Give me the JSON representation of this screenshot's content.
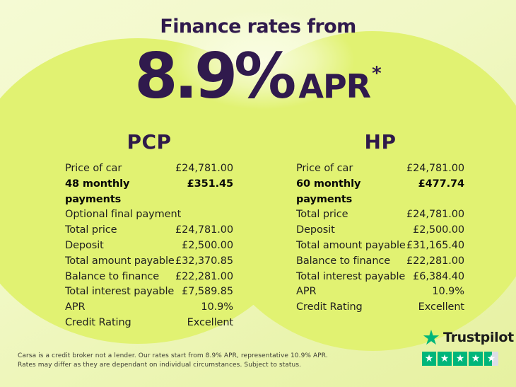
{
  "title": "Finance rates from",
  "headline": {
    "rate": "8.9%",
    "unit": "APR",
    "footnote_marker": "*"
  },
  "columns": [
    {
      "name": "PCP",
      "rows": [
        {
          "label": "Price of car",
          "value": "£24,781.00",
          "bold": false
        },
        {
          "label": "48 monthly payments",
          "value": "£351.45",
          "bold": true
        },
        {
          "label": "Optional final payment",
          "value": "",
          "bold": false
        },
        {
          "label": "Total price",
          "value": "£24,781.00",
          "bold": false
        },
        {
          "label": "Deposit",
          "value": "£2,500.00",
          "bold": false
        },
        {
          "label": "Total amount payable",
          "value": "£32,370.85",
          "bold": false
        },
        {
          "label": "Balance to finance",
          "value": "£22,281.00",
          "bold": false
        },
        {
          "label": "Total interest payable",
          "value": "£7,589.85",
          "bold": false
        },
        {
          "label": "APR",
          "value": "10.9%",
          "bold": false
        },
        {
          "label": "Credit Rating",
          "value": "Excellent",
          "bold": false
        }
      ]
    },
    {
      "name": "HP",
      "rows": [
        {
          "label": "Price of car",
          "value": "£24,781.00",
          "bold": false
        },
        {
          "label": "60 monthly payments",
          "value": "£477.74",
          "bold": true
        },
        {
          "label": "Total price",
          "value": "£24,781.00",
          "bold": false
        },
        {
          "label": "Deposit",
          "value": "£2,500.00",
          "bold": false
        },
        {
          "label": "Total amount payable",
          "value": "£31,165.40",
          "bold": false
        },
        {
          "label": "Balance to finance",
          "value": "£22,281.00",
          "bold": false
        },
        {
          "label": "Total interest payable",
          "value": "£6,384.40",
          "bold": false
        },
        {
          "label": "APR",
          "value": "10.9%",
          "bold": false
        },
        {
          "label": "Credit Rating",
          "value": "Excellent",
          "bold": false
        }
      ]
    }
  ],
  "disclaimer": {
    "line1": "Carsa is a credit broker not a lender. Our rates start from 8.9% APR, representative 10.9% APR.",
    "line2": "Rates may differ as they are dependant on individual circumstances. Subject to status."
  },
  "trustpilot": {
    "brand": "Trustpilot",
    "rating_out_of_5": 4.5,
    "star_fills_percent": [
      100,
      100,
      100,
      100,
      55
    ],
    "star_icon": "★"
  },
  "colors": {
    "accent_purple": "#301a4d",
    "circle_green": "#e1f272",
    "background_pale": "#f1f8c6",
    "trustpilot_green": "#00b67a",
    "star_empty_gray": "#dcdde6"
  }
}
